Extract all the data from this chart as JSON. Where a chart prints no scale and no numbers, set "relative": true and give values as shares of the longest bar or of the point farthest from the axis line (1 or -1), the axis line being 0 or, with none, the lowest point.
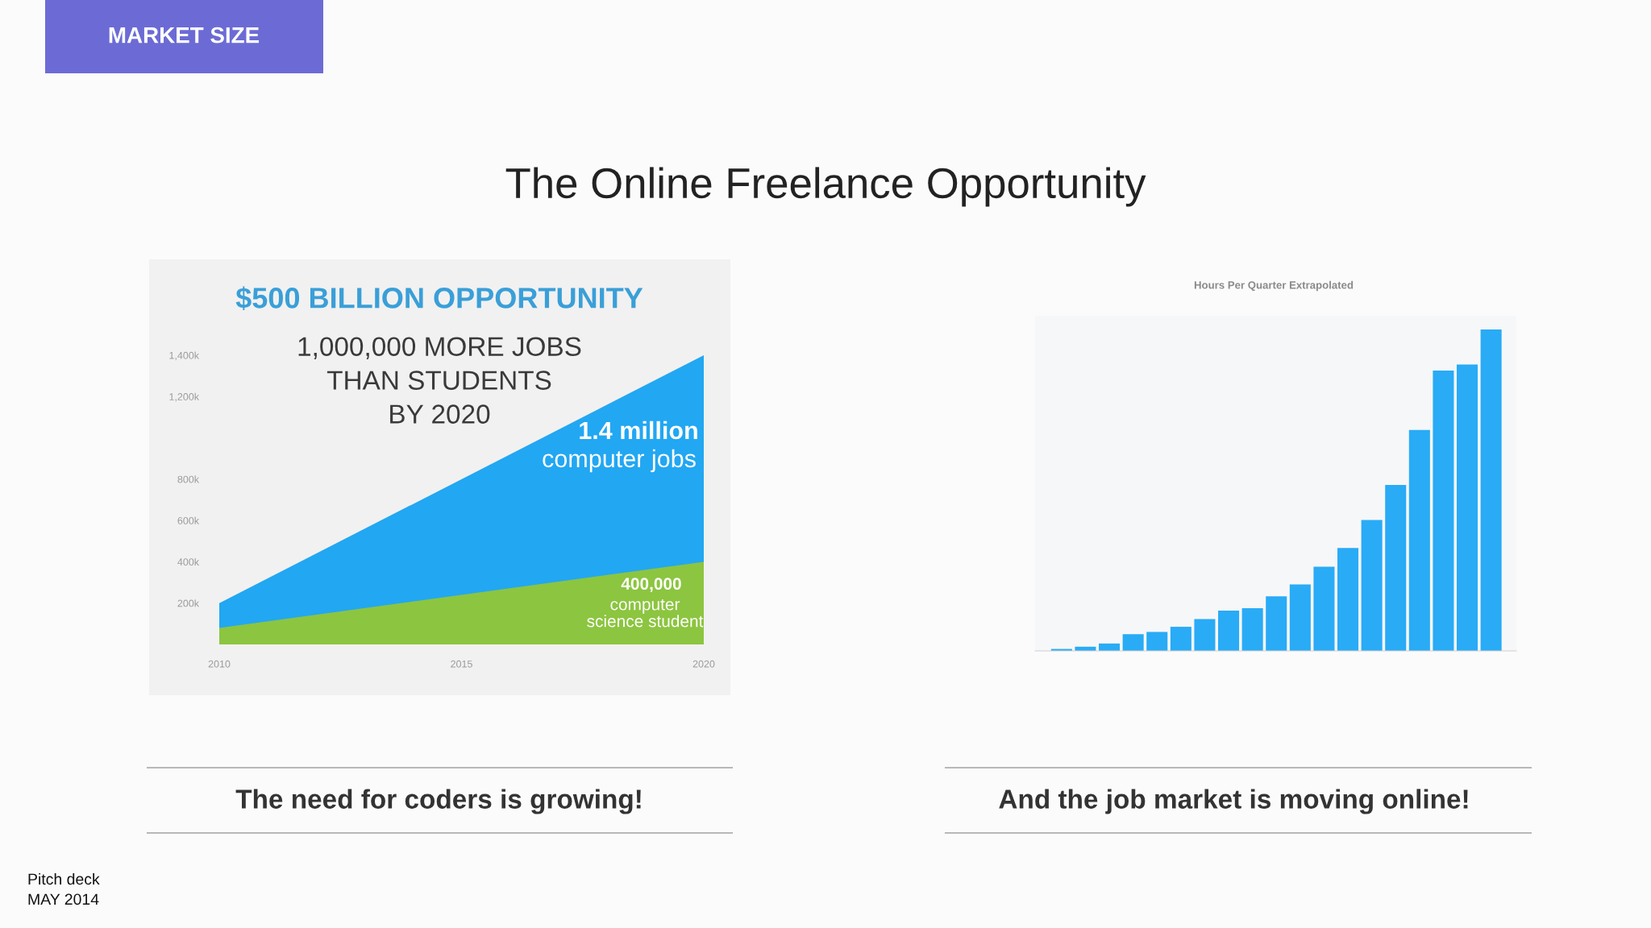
{
  "chart_data": [
    {
      "type": "other",
      "title": "The Online Freelance Opportunity",
      "annotations": [
        "MARKET SIZE"
      ]
    },
    {
      "type": "area",
      "title": "$500 BILLION OPPORTUNITY",
      "subtitle": "1,000,000 MORE JOBS\nTHAN STUDENTS\nBY 2020",
      "x": [
        2010,
        2020
      ],
      "series": [
        {
          "name": "computer jobs",
          "color": "#22a7f2",
          "values": [
            200000,
            1400000
          ],
          "value_labels": [
            null,
            "1.4 million"
          ]
        },
        {
          "name": "computer science student",
          "color": "#8cc540",
          "values": [
            80000,
            400000
          ],
          "value_labels": [
            null,
            "400,000"
          ]
        }
      ],
      "xlim": [
        2010,
        2020
      ],
      "xticks": [
        2010,
        2015,
        2020
      ],
      "ylim": [
        0,
        1400000
      ],
      "yticks": [
        {
          "value": 200000,
          "label": "200k"
        },
        {
          "value": 400000,
          "label": "400k"
        },
        {
          "value": 600000,
          "label": "600k"
        },
        {
          "value": 800000,
          "label": "800k"
        },
        {
          "value": 1200000,
          "label": "1,200k"
        },
        {
          "value": 1400000,
          "label": "1,400k"
        }
      ],
      "annotations": [
        "The need for coders is growing!"
      ]
    },
    {
      "type": "bar",
      "title": "Hours Per Quarter Extrapolated",
      "categories": [
        null,
        null,
        null,
        null,
        null,
        null,
        null,
        null,
        null,
        null,
        null,
        null,
        null,
        null,
        null,
        null,
        null,
        null,
        null
      ],
      "values": [
        0.006,
        0.013,
        0.023,
        0.052,
        0.059,
        0.075,
        0.099,
        0.125,
        0.133,
        0.17,
        0.207,
        0.262,
        0.32,
        0.407,
        0.516,
        0.687,
        0.872,
        0.891,
        1
      ],
      "color": "#29abf6",
      "relative": true,
      "annotations": [
        "And the job market is moving online!"
      ]
    },
    {
      "type": "other",
      "annotations": [
        "Pitch deck",
        "MAY 2014"
      ]
    }
  ]
}
